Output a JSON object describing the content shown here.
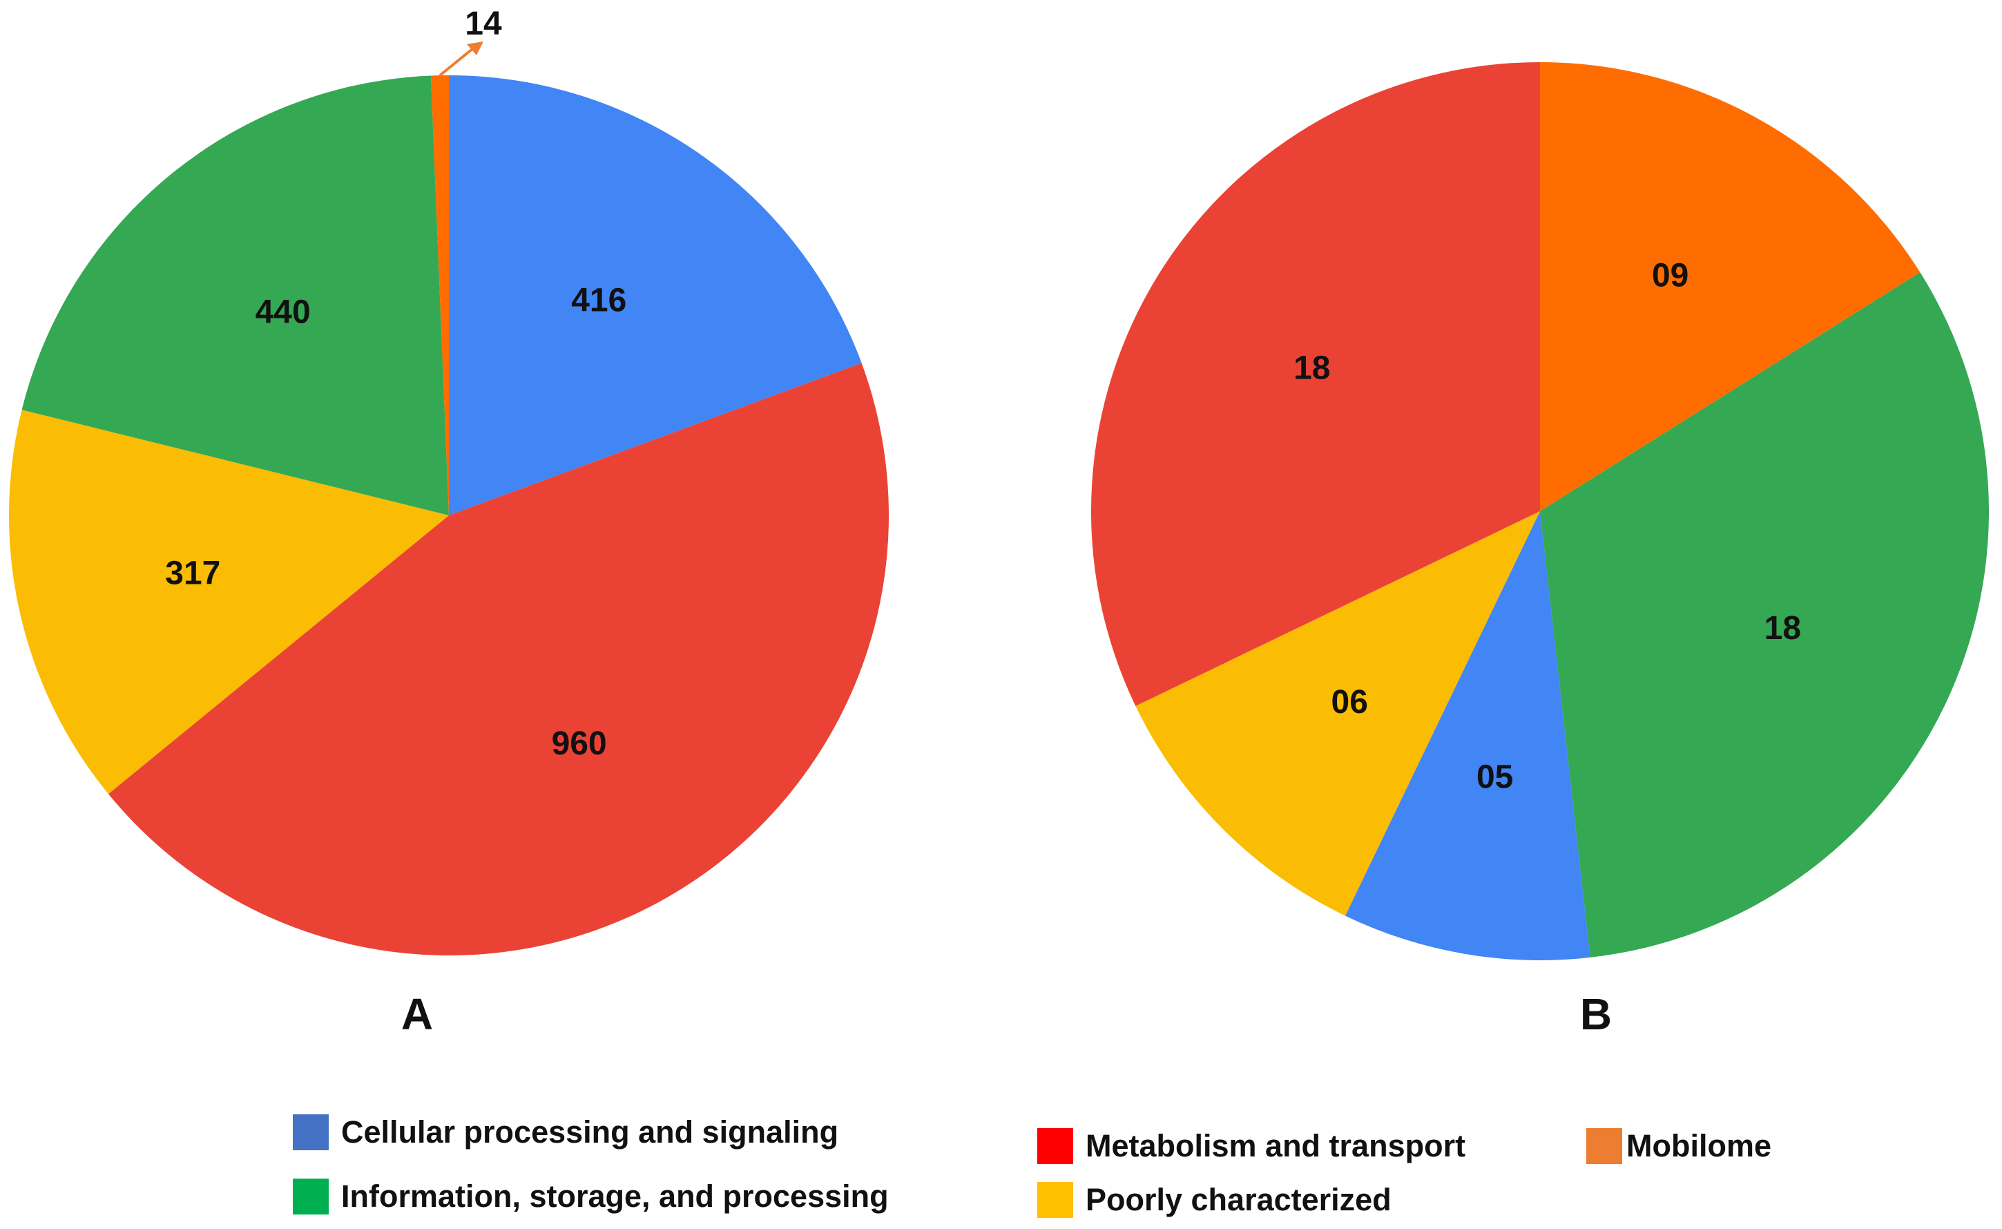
{
  "colors": {
    "cellular": "#4285F4",
    "metabolism": "#EA4335",
    "poorly": "#FBBC04",
    "information": "#34A853",
    "mobilome": "#FF6D01",
    "mobilome_swatch": "#ED7D31",
    "metabolism_swatch": "#FF0000",
    "cellular_swatch": "#4472C4",
    "information_swatch": "#00B050",
    "poorly_swatch": "#FFC000"
  },
  "chart_data": [
    {
      "type": "pie",
      "panel_label": "A",
      "slices": [
        {
          "category": "Cellular processing and signaling",
          "value": 416,
          "label": "416",
          "color": "#4285F4"
        },
        {
          "category": "Metabolism and transport",
          "value": 960,
          "label": "960",
          "color": "#EA4335"
        },
        {
          "category": "Poorly characterized",
          "value": 317,
          "label": "317",
          "color": "#FBBC04"
        },
        {
          "category": "Information, storage, and processing",
          "value": 440,
          "label": "440",
          "color": "#34A853"
        },
        {
          "category": "Mobilome",
          "value": 14,
          "label": "14",
          "color": "#FF6D01",
          "callout": true
        }
      ]
    },
    {
      "type": "pie",
      "panel_label": "B",
      "slices": [
        {
          "category": "Mobilome",
          "value": 9,
          "label": "09",
          "color": "#FF6D01"
        },
        {
          "category": "Information, storage, and processing",
          "value": 18,
          "label": "18",
          "color": "#34A853"
        },
        {
          "category": "Cellular processing and signaling",
          "value": 5,
          "label": "05",
          "color": "#4285F4"
        },
        {
          "category": "Poorly characterized",
          "value": 6,
          "label": "06",
          "color": "#FBBC04"
        },
        {
          "category": "Metabolism and transport",
          "value": 18,
          "label": "18",
          "color": "#EA4335"
        }
      ]
    }
  ],
  "legend": {
    "cellular": "Cellular processing and signaling",
    "information": "Information, storage, and processing",
    "metabolism": "Metabolism and transport",
    "poorly": "Poorly characterized",
    "mobilome": "Mobilome"
  }
}
